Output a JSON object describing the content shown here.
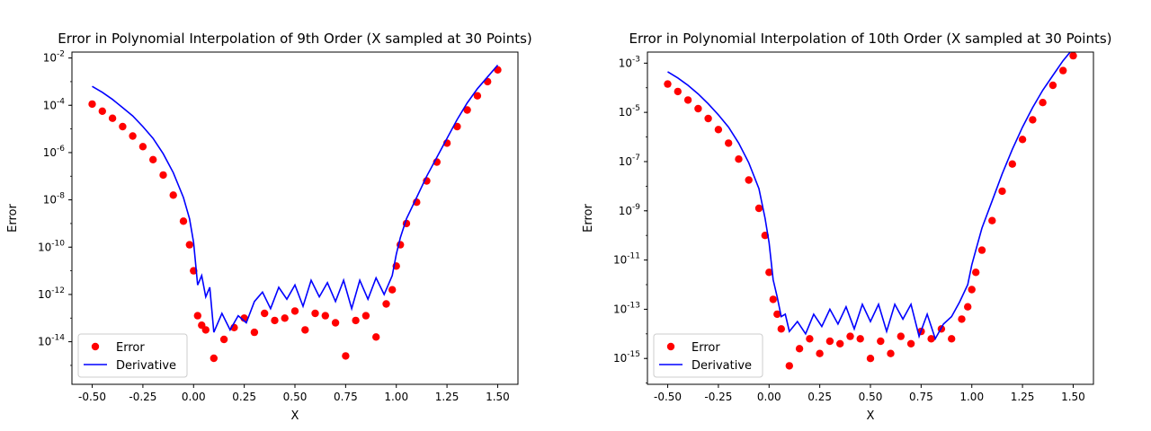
{
  "chart_data": [
    {
      "type": "scatter",
      "title": "Error in Polynomial Interpolation of 9th Order (X sampled at 30 Points)",
      "xlabel": "X",
      "ylabel": "Error",
      "yscale": "log",
      "xlim": [
        -0.6,
        1.6
      ],
      "ylim_exponent": [
        -15.8,
        -1.75
      ],
      "xticks": [
        "-0.50",
        "-0.25",
        "0.00",
        "0.25",
        "0.50",
        "0.75",
        "1.00",
        "1.25",
        "1.50"
      ],
      "yticks": [
        {
          "base": "10",
          "exp": "-14",
          "e": -14
        },
        {
          "base": "10",
          "exp": "-12",
          "e": -12
        },
        {
          "base": "10",
          "exp": "-10",
          "e": -10
        },
        {
          "base": "10",
          "exp": "-8",
          "e": -8
        },
        {
          "base": "10",
          "exp": "-6",
          "e": -6
        },
        {
          "base": "10",
          "exp": "-4",
          "e": -4
        },
        {
          "base": "10",
          "exp": "-2",
          "e": -2
        }
      ],
      "legend": {
        "position": "lower-left",
        "entries": [
          "Error",
          "Derivative"
        ]
      },
      "colors": {
        "error": "#ff0000",
        "derivative": "#0000ff"
      },
      "series": [
        {
          "name": "Error",
          "style": "markers",
          "color": "#ff0000",
          "x": [
            -0.5,
            -0.45,
            -0.4,
            -0.35,
            -0.3,
            -0.25,
            -0.2,
            -0.15,
            -0.1,
            -0.05,
            -0.02,
            0.0,
            0.02,
            0.04,
            0.06,
            0.1,
            0.15,
            0.2,
            0.25,
            0.3,
            0.35,
            0.4,
            0.45,
            0.5,
            0.55,
            0.6,
            0.65,
            0.7,
            0.75,
            0.8,
            0.85,
            0.9,
            0.95,
            0.98,
            1.0,
            1.02,
            1.05,
            1.1,
            1.15,
            1.2,
            1.25,
            1.3,
            1.35,
            1.4,
            1.45,
            1.5
          ],
          "exp": [
            -3.95,
            -4.25,
            -4.55,
            -4.9,
            -5.3,
            -5.75,
            -6.3,
            -6.95,
            -7.8,
            -8.9,
            -9.9,
            -11.0,
            -12.9,
            -13.3,
            -13.5,
            -14.7,
            -13.9,
            -13.4,
            -13.0,
            -13.6,
            -12.8,
            -13.1,
            -13.0,
            -12.7,
            -13.5,
            -12.8,
            -12.9,
            -13.2,
            -14.6,
            -13.1,
            -12.9,
            -13.8,
            -12.4,
            -11.8,
            -10.8,
            -9.9,
            -9.0,
            -8.1,
            -7.2,
            -6.4,
            -5.6,
            -4.9,
            -4.2,
            -3.6,
            -3.0,
            -2.5
          ]
        },
        {
          "name": "Derivative",
          "style": "line",
          "color": "#0000ff",
          "x": [
            -0.5,
            -0.45,
            -0.4,
            -0.35,
            -0.3,
            -0.25,
            -0.2,
            -0.15,
            -0.1,
            -0.05,
            -0.02,
            0.0,
            0.02,
            0.04,
            0.06,
            0.08,
            0.1,
            0.14,
            0.18,
            0.22,
            0.26,
            0.3,
            0.34,
            0.38,
            0.42,
            0.46,
            0.5,
            0.54,
            0.58,
            0.62,
            0.66,
            0.7,
            0.74,
            0.78,
            0.82,
            0.86,
            0.9,
            0.94,
            0.98,
            1.0,
            1.02,
            1.05,
            1.1,
            1.15,
            1.2,
            1.25,
            1.3,
            1.35,
            1.4,
            1.45,
            1.5
          ],
          "exp": [
            -3.2,
            -3.45,
            -3.75,
            -4.1,
            -4.45,
            -4.9,
            -5.4,
            -6.05,
            -6.85,
            -7.9,
            -8.8,
            -9.8,
            -11.6,
            -11.2,
            -12.1,
            -11.7,
            -13.6,
            -12.8,
            -13.5,
            -12.9,
            -13.2,
            -12.3,
            -11.9,
            -12.6,
            -11.7,
            -12.2,
            -11.6,
            -12.5,
            -11.4,
            -12.1,
            -11.5,
            -12.3,
            -11.4,
            -12.6,
            -11.4,
            -12.2,
            -11.3,
            -12.0,
            -11.2,
            -10.3,
            -9.6,
            -8.8,
            -7.9,
            -7.0,
            -6.2,
            -5.4,
            -4.6,
            -3.9,
            -3.3,
            -2.8,
            -2.3
          ]
        }
      ]
    },
    {
      "type": "scatter",
      "title": "Error in Polynomial Interpolation of 10th Order (X sampled at 30 Points)",
      "xlabel": "X",
      "ylabel": "Error",
      "yscale": "log",
      "xlim": [
        -0.6,
        1.6
      ],
      "ylim_exponent": [
        -16.05,
        -2.55
      ],
      "xticks": [
        "-0.50",
        "-0.25",
        "0.00",
        "0.25",
        "0.50",
        "0.75",
        "1.00",
        "1.25",
        "1.50"
      ],
      "yticks": [
        {
          "base": "10",
          "exp": "-15",
          "e": -15
        },
        {
          "base": "10",
          "exp": "-13",
          "e": -13
        },
        {
          "base": "10",
          "exp": "-11",
          "e": -11
        },
        {
          "base": "10",
          "exp": "-9",
          "e": -9
        },
        {
          "base": "10",
          "exp": "-7",
          "e": -7
        },
        {
          "base": "10",
          "exp": "-5",
          "e": -5
        },
        {
          "base": "10",
          "exp": "-3",
          "e": -3
        }
      ],
      "legend": {
        "position": "lower-left",
        "entries": [
          "Error",
          "Derivative"
        ]
      },
      "colors": {
        "error": "#ff0000",
        "derivative": "#0000ff"
      },
      "series": [
        {
          "name": "Error",
          "style": "markers",
          "color": "#ff0000",
          "x": [
            -0.5,
            -0.45,
            -0.4,
            -0.35,
            -0.3,
            -0.25,
            -0.2,
            -0.15,
            -0.1,
            -0.05,
            -0.02,
            0.0,
            0.02,
            0.04,
            0.06,
            0.1,
            0.15,
            0.2,
            0.25,
            0.3,
            0.35,
            0.4,
            0.45,
            0.5,
            0.55,
            0.6,
            0.65,
            0.7,
            0.75,
            0.8,
            0.85,
            0.9,
            0.95,
            0.98,
            1.0,
            1.02,
            1.05,
            1.1,
            1.15,
            1.2,
            1.25,
            1.3,
            1.35,
            1.4,
            1.45,
            1.5
          ],
          "exp": [
            -3.85,
            -4.15,
            -4.5,
            -4.85,
            -5.25,
            -5.7,
            -6.25,
            -6.9,
            -7.75,
            -8.9,
            -10.0,
            -11.5,
            -12.6,
            -13.2,
            -13.8,
            -15.3,
            -14.6,
            -14.2,
            -14.8,
            -14.3,
            -14.4,
            -14.1,
            -14.2,
            -15.0,
            -14.3,
            -14.8,
            -14.1,
            -14.4,
            -13.9,
            -14.2,
            -13.8,
            -14.2,
            -13.4,
            -12.9,
            -12.2,
            -11.5,
            -10.6,
            -9.4,
            -8.2,
            -7.1,
            -6.1,
            -5.3,
            -4.6,
            -3.9,
            -3.3,
            -2.7
          ]
        },
        {
          "name": "Derivative",
          "style": "line",
          "color": "#0000ff",
          "x": [
            -0.5,
            -0.45,
            -0.4,
            -0.35,
            -0.3,
            -0.25,
            -0.2,
            -0.15,
            -0.1,
            -0.05,
            -0.02,
            0.0,
            0.02,
            0.04,
            0.06,
            0.08,
            0.1,
            0.14,
            0.18,
            0.22,
            0.26,
            0.3,
            0.34,
            0.38,
            0.42,
            0.46,
            0.5,
            0.54,
            0.58,
            0.62,
            0.66,
            0.7,
            0.74,
            0.78,
            0.82,
            0.86,
            0.9,
            0.94,
            0.98,
            1.0,
            1.02,
            1.05,
            1.1,
            1.15,
            1.2,
            1.25,
            1.3,
            1.35,
            1.4,
            1.45,
            1.5
          ],
          "exp": [
            -3.35,
            -3.6,
            -3.9,
            -4.25,
            -4.65,
            -5.1,
            -5.6,
            -6.25,
            -7.05,
            -8.1,
            -9.3,
            -10.3,
            -11.8,
            -12.5,
            -13.3,
            -13.2,
            -13.9,
            -13.5,
            -14.0,
            -13.2,
            -13.7,
            -13.0,
            -13.6,
            -12.9,
            -13.8,
            -12.8,
            -13.5,
            -12.8,
            -13.9,
            -12.8,
            -13.4,
            -12.8,
            -14.1,
            -13.2,
            -14.2,
            -13.6,
            -13.3,
            -12.7,
            -12.0,
            -11.2,
            -10.6,
            -9.7,
            -8.6,
            -7.5,
            -6.5,
            -5.6,
            -4.8,
            -4.1,
            -3.5,
            -2.9,
            -2.4
          ]
        }
      ]
    }
  ]
}
